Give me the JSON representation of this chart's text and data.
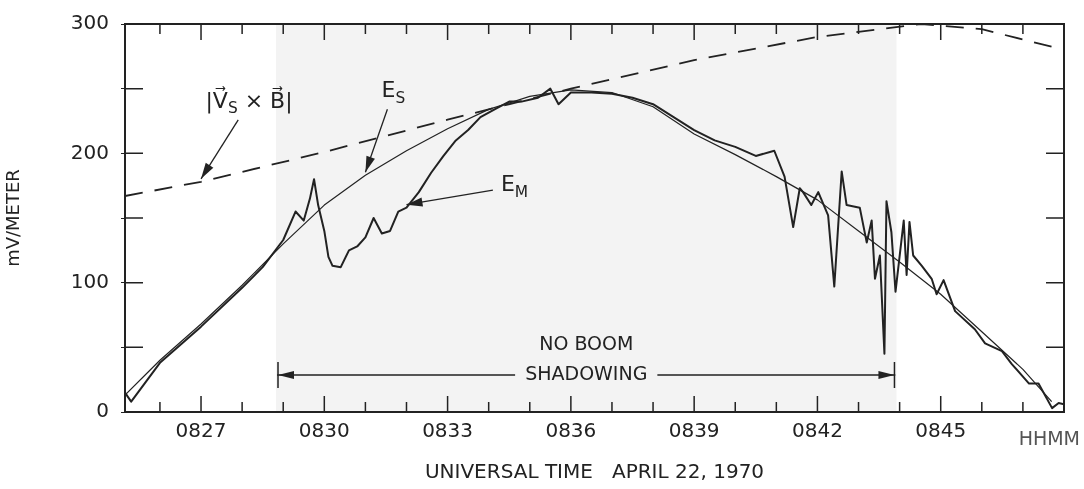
{
  "chart_data": {
    "type": "line",
    "xlabel": "UNIVERSAL TIME   APRIL 22, 1970",
    "ylabel": "mV/METER",
    "xlim": [
      825.15,
      848
    ],
    "ylim": [
      0,
      300
    ],
    "xticks": [
      {
        "value": 826,
        "label": null
      },
      {
        "value": 827,
        "label": "0827"
      },
      {
        "value": 828,
        "label": null
      },
      {
        "value": 829,
        "label": null
      },
      {
        "value": 830,
        "label": "0830"
      },
      {
        "value": 831,
        "label": null
      },
      {
        "value": 832,
        "label": null
      },
      {
        "value": 833,
        "label": "0833"
      },
      {
        "value": 834,
        "label": null
      },
      {
        "value": 835,
        "label": null
      },
      {
        "value": 836,
        "label": "0836"
      },
      {
        "value": 837,
        "label": null
      },
      {
        "value": 838,
        "label": null
      },
      {
        "value": 839,
        "label": "0839"
      },
      {
        "value": 840,
        "label": null
      },
      {
        "value": 841,
        "label": null
      },
      {
        "value": 842,
        "label": "0842"
      },
      {
        "value": 843,
        "label": null
      },
      {
        "value": 844,
        "label": null
      },
      {
        "value": 845,
        "label": "0845"
      },
      {
        "value": 846,
        "label": null
      },
      {
        "value": 847,
        "label": null
      }
    ],
    "yticks": [
      0,
      {
        "value": 50,
        "label": null
      },
      100,
      {
        "value": 150,
        "label": null
      },
      200,
      {
        "value": 250,
        "label": null
      },
      300
    ],
    "grid": false,
    "legend": false,
    "marker": "none",
    "series": [
      {
        "color": "#222222",
        "line_style": "dashed",
        "x": [
          825.15,
          827,
          830,
          833,
          836,
          839,
          842,
          844.54,
          846,
          848
        ],
        "values": [
          167,
          178,
          201,
          226,
          250,
          272,
          290,
          300,
          296,
          280
        ]
      },
      {
        "color": "#222222",
        "line_style": "solid",
        "x": [
          825.15,
          826,
          827,
          828,
          829,
          830,
          831,
          832,
          833,
          834,
          835,
          836,
          837,
          838,
          839,
          840,
          841,
          842,
          843,
          844,
          845,
          846,
          847,
          847.7
        ],
        "values": [
          13,
          40,
          68,
          98,
          130,
          160,
          183,
          202,
          219,
          234,
          244,
          249,
          247,
          236,
          215,
          199,
          182,
          164,
          140,
          116,
          91,
          62,
          33,
          8
        ]
      },
      {
        "color": "#222222",
        "line_style": "solid",
        "x": [
          825.15,
          825.3,
          826,
          827,
          828,
          828.5,
          829,
          829.3,
          829.5,
          829.65,
          829.75,
          829.85,
          830,
          830.1,
          830.2,
          830.4,
          830.6,
          830.8,
          831,
          831.2,
          831.4,
          831.6,
          831.8,
          832,
          832.3,
          832.6,
          832.9,
          833.2,
          833.5,
          833.8,
          834.2,
          834.5,
          834.8,
          835.2,
          835.5,
          835.7,
          836,
          836.5,
          837,
          837.5,
          838,
          838.5,
          839,
          839.5,
          840,
          840.5,
          840.95,
          841.2,
          841.41,
          841.57,
          841.65,
          841.85,
          842.02,
          842.26,
          842.41,
          842.59,
          842.71,
          843.03,
          843.2,
          843.32,
          843.4,
          843.52,
          843.63,
          843.68,
          843.8,
          843.9,
          844.1,
          844.17,
          844.24,
          844.33,
          844.54,
          844.78,
          844.9,
          845.07,
          845.35,
          845.83,
          846.08,
          846.49,
          846.73,
          847.15,
          847.38,
          847.71,
          847.87,
          848
        ],
        "values": [
          15,
          8,
          38,
          66,
          96,
          112,
          133,
          155,
          148,
          165,
          180,
          160,
          140,
          120,
          113,
          112,
          125,
          128,
          135,
          150,
          138,
          140,
          155,
          158,
          170,
          185,
          198,
          210,
          218,
          228,
          235,
          240,
          240,
          243,
          250,
          238,
          247,
          247,
          246,
          243,
          238,
          228,
          218,
          210,
          205,
          198,
          202,
          182,
          143,
          173,
          170,
          160,
          170,
          152,
          97,
          186,
          160,
          158,
          131,
          148,
          103,
          121,
          45,
          163,
          139,
          93,
          148,
          106,
          147,
          121,
          113,
          103,
          91,
          102,
          78,
          64,
          53,
          47,
          37,
          22,
          22,
          3,
          7,
          6
        ]
      }
    ],
    "bands": [
      {
        "axis": "x",
        "from": 828.85,
        "to": 843.9,
        "label": "NO BOOM\nSHADOWING"
      }
    ],
    "annotations": [
      {
        "text": "|V⃗$_{S}$ × B⃗|",
        "x": 827,
        "y": 178
      },
      {
        "text": "E$_{S}$",
        "x": 831,
        "y": 183
      },
      {
        "text": "E$_{M}$",
        "x": 832,
        "y": 158
      },
      "HHMM"
    ]
  }
}
